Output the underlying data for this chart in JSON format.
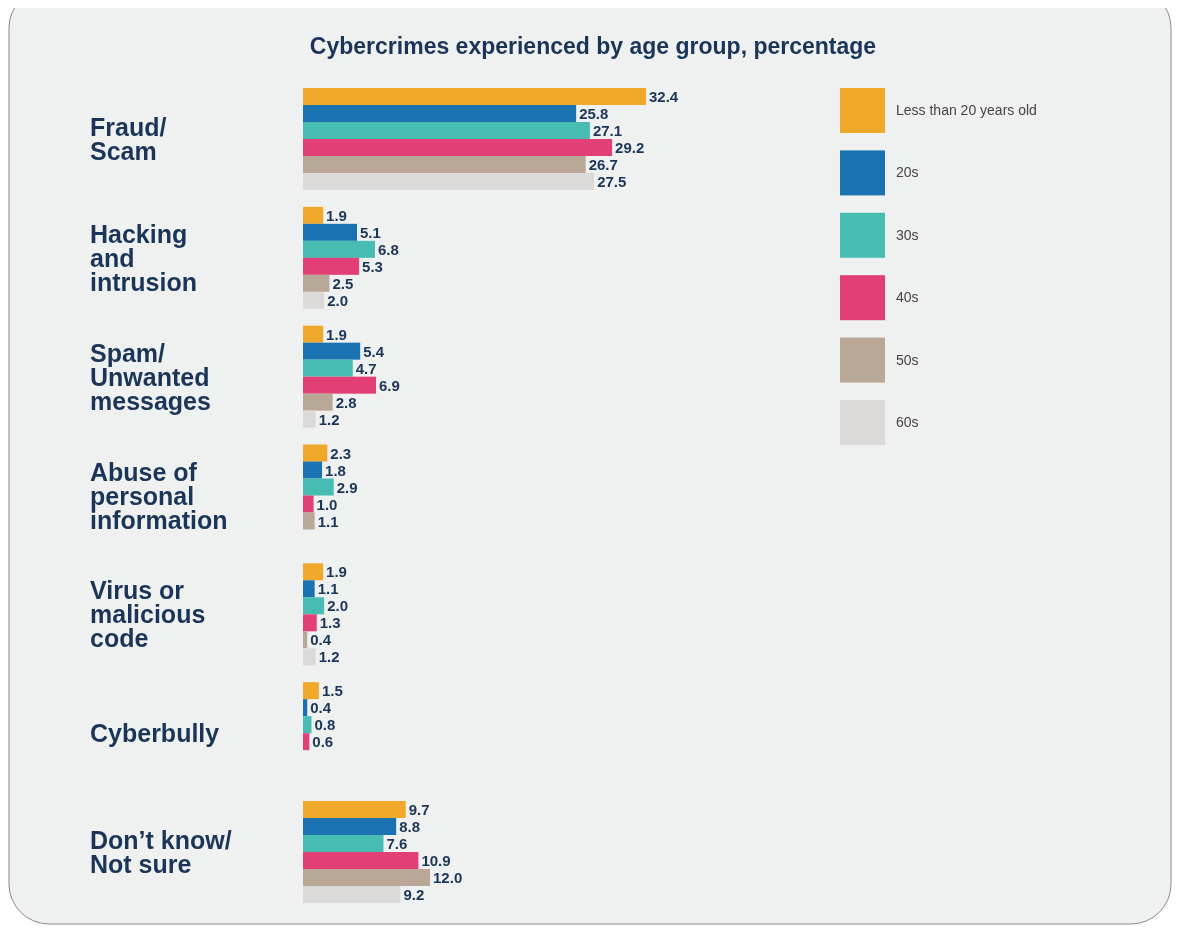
{
  "chart_data": {
    "type": "bar",
    "orientation": "horizontal",
    "title": "Cybercrimes experienced by age group, percentage",
    "categories": [
      "Fraud/\nScam",
      "Hacking\nand\nintrusion",
      "Spam/\nUnwanted\nmessages",
      "Abuse of\npersonal\ninformation",
      "Virus or\nmalicious\ncode",
      "Cyberbully",
      "Don’t know/\nNot sure"
    ],
    "series": [
      {
        "name": "Less than 20 years old",
        "color": "#f0a82a",
        "values": [
          32.4,
          1.9,
          1.9,
          2.3,
          1.9,
          1.5,
          9.7
        ],
        "value_labels": [
          "32.4",
          "1.9",
          "1.9",
          "2.3",
          "1.9",
          "1.5",
          "9.7"
        ]
      },
      {
        "name": "20s",
        "color": "#1a72b0",
        "values": [
          25.8,
          5.1,
          5.4,
          1.8,
          1.1,
          0.4,
          8.8
        ],
        "value_labels": [
          "25.8",
          "5.1",
          "5.4",
          "1.8",
          "1.1",
          "0.4",
          "8.8"
        ]
      },
      {
        "name": "30s",
        "color": "#47bcb2",
        "values": [
          27.1,
          6.8,
          4.7,
          2.9,
          2.0,
          0.8,
          7.6
        ],
        "value_labels": [
          "27.1",
          "6.8",
          "4.7",
          "2.9",
          "2.0",
          "0.8",
          "7.6"
        ]
      },
      {
        "name": "40s",
        "color": "#e23f76",
        "values": [
          29.2,
          5.3,
          6.9,
          1.0,
          1.3,
          0.6,
          10.9
        ],
        "value_labels": [
          "29.2",
          "5.3",
          "6.9",
          "1.0",
          "1.3",
          "0.6",
          "10.9"
        ]
      },
      {
        "name": "50s",
        "color": "#b9a898",
        "values": [
          26.7,
          2.5,
          2.8,
          1.1,
          0.4,
          null,
          12.0
        ],
        "value_labels": [
          "26.7",
          "2.5",
          "2.8",
          "1.1",
          "0.4",
          null,
          "12.0"
        ]
      },
      {
        "name": "60s",
        "color": "#dcdad8",
        "values": [
          27.5,
          2.0,
          1.2,
          null,
          1.2,
          null,
          9.2
        ],
        "value_labels": [
          "27.5",
          "2.0",
          "1.2",
          null,
          "1.2",
          null,
          "9.2"
        ]
      }
    ],
    "legend": "top right"
  }
}
